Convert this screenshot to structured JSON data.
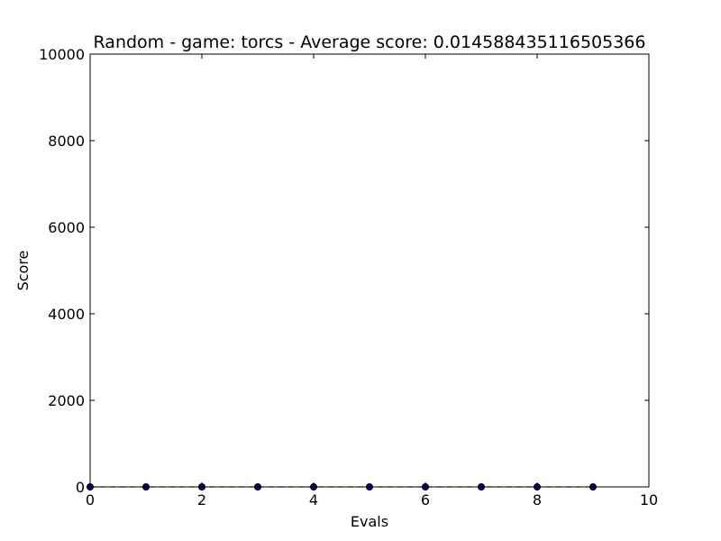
{
  "chart_data": {
    "type": "scatter",
    "title": "Random - game: torcs - Average score: 0.014588435116505366",
    "xlabel": "Evals",
    "ylabel": "Score",
    "xlim": [
      0,
      10
    ],
    "ylim": [
      0,
      10000
    ],
    "x_ticks": [
      0,
      2,
      4,
      6,
      8,
      10
    ],
    "x_tick_labels": [
      "0",
      "2",
      "4",
      "6",
      "8",
      "10"
    ],
    "y_ticks": [
      0,
      2000,
      4000,
      6000,
      8000,
      10000
    ],
    "y_tick_labels": [
      "0",
      "2000",
      "4000",
      "6000",
      "8000",
      "10000"
    ],
    "grid": false,
    "series": [
      {
        "x": [
          0,
          1,
          2,
          3,
          4,
          5,
          6,
          7,
          8,
          9
        ],
        "y": [
          0,
          0,
          0,
          0,
          0,
          0,
          0,
          0,
          0,
          0
        ],
        "color": "#00008b",
        "marker_edge_color": "#000000",
        "line_color": "#e6a817",
        "line_style": "dashed"
      }
    ]
  }
}
